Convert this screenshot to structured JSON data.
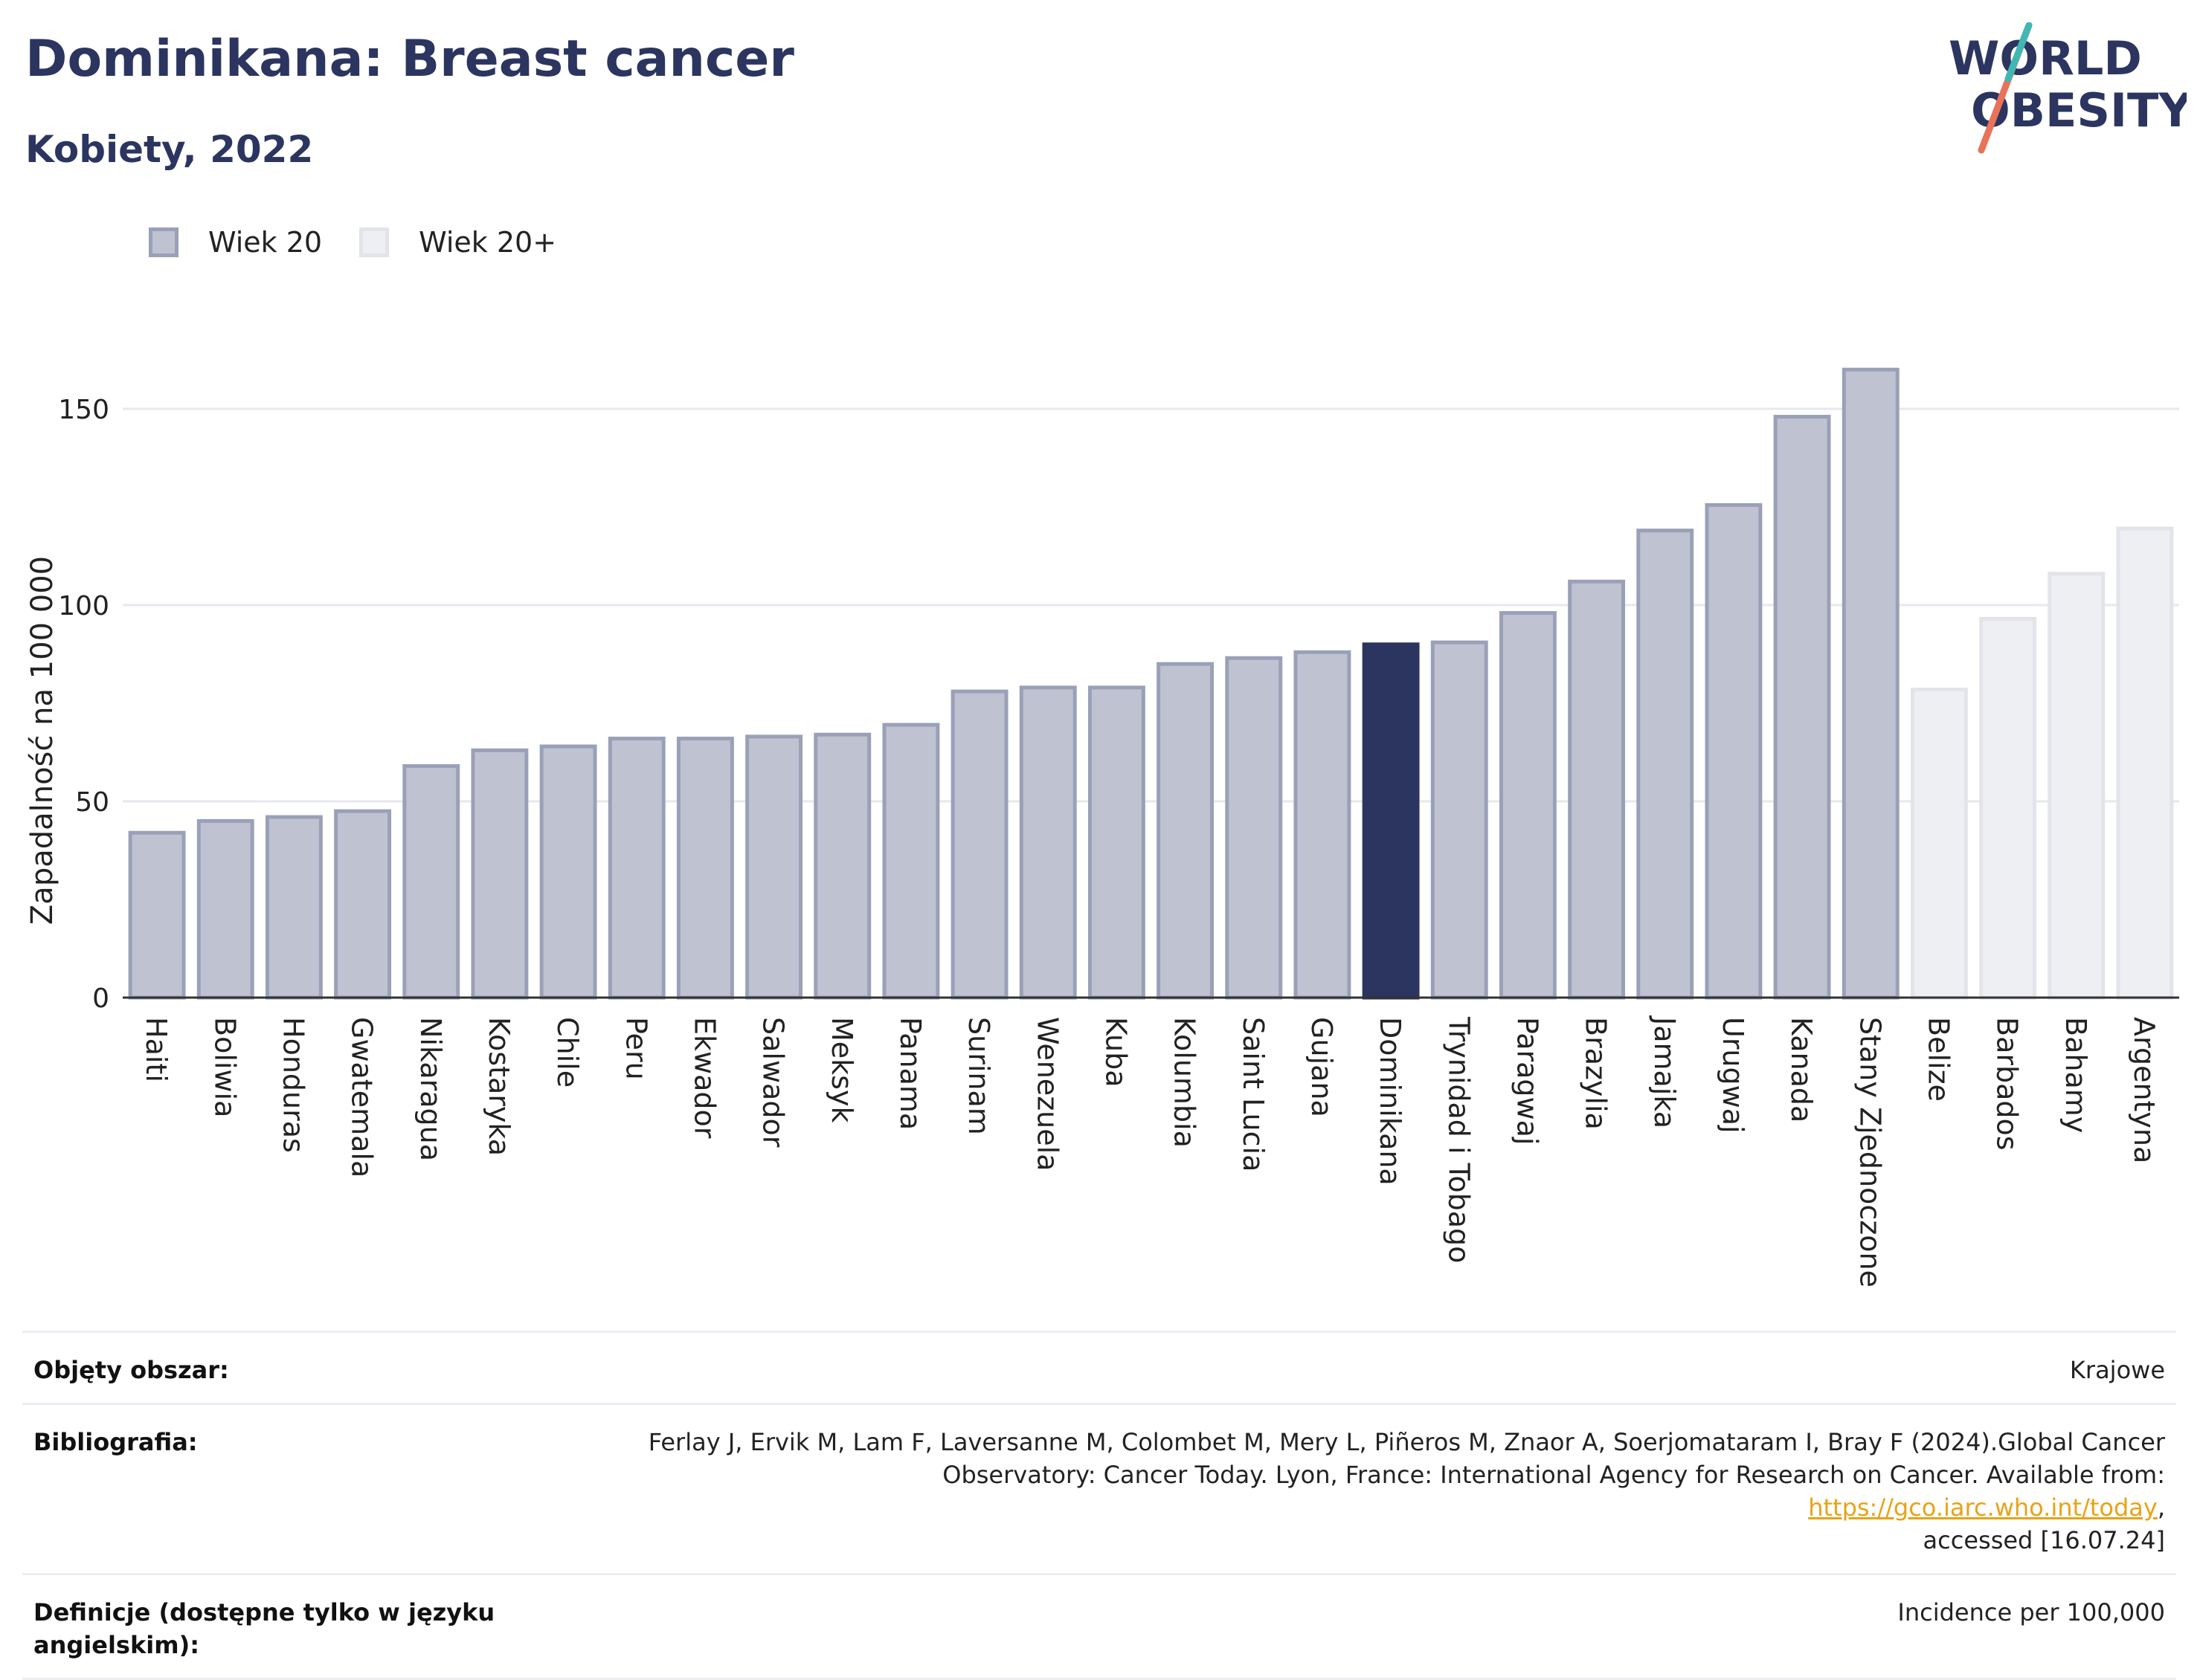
{
  "header": {
    "title": "Dominikana: Breast cancer",
    "subtitle": "Kobiety, 2022",
    "logo_line1": "WORLD",
    "logo_line2": "OBESITY"
  },
  "legend": {
    "items": [
      {
        "label": "Wiek 20",
        "color": "#9aa0b7"
      },
      {
        "label": "Wiek 20+",
        "color": "#e2e4ea"
      }
    ]
  },
  "colors": {
    "highlight": "#2b3560",
    "series_age20": "#bfc3d1",
    "series_age20plus": "#eeeff3",
    "grid": "#e6e8ee"
  },
  "chart_data": {
    "type": "bar",
    "title": "Dominikana: Breast cancer",
    "subtitle": "Kobiety, 2022",
    "ylabel": "Zapadalność na 100 000",
    "xlabel": "",
    "ylim": [
      0,
      170
    ],
    "yticks": [
      0,
      50,
      100,
      150
    ],
    "grid": true,
    "legend_position": "top-left",
    "highlight": "Dominikana",
    "series_names": [
      "Wiek 20",
      "Wiek 20+"
    ],
    "categories": [
      "Haiti",
      "Boliwia",
      "Honduras",
      "Gwatemala",
      "Nikaragua",
      "Kostaryka",
      "Chile",
      "Peru",
      "Ekwador",
      "Salwador",
      "Meksyk",
      "Panama",
      "Surinam",
      "Wenezuela",
      "Kuba",
      "Kolumbia",
      "Saint Lucia",
      "Gujana",
      "Dominikana",
      "Trynidad i Tobago",
      "Paragwaj",
      "Brazylia",
      "Jamajka",
      "Urugwaj",
      "Kanada",
      "Stany Zjednoczone",
      "Belize",
      "Barbados",
      "Bahamy",
      "Argentyna"
    ],
    "values": [
      42,
      45,
      46,
      47.5,
      59,
      63,
      64,
      66,
      66,
      66.5,
      67,
      69.5,
      78,
      79,
      79,
      85,
      86.5,
      88,
      90,
      90.5,
      98,
      106,
      119,
      125.5,
      148,
      160,
      78.5,
      96.5,
      108,
      119.5
    ],
    "series_index": [
      0,
      0,
      0,
      0,
      0,
      0,
      0,
      0,
      0,
      0,
      0,
      0,
      0,
      0,
      0,
      0,
      0,
      0,
      0,
      0,
      0,
      0,
      0,
      0,
      0,
      0,
      1,
      1,
      1,
      1
    ]
  },
  "footer": {
    "rows": [
      {
        "label": "Objęty obszar:",
        "value": "Krajowe"
      },
      {
        "label": "Bibliografia:",
        "value_line1": "Ferlay J, Ervik M, Lam F, Laversanne M, Colombet M, Mery L, Piñeros M, Znaor A, Soerjomataram I, Bray F (2024).Global Cancer",
        "value_line2_pre": "Observatory: Cancer Today. Lyon, France: International Agency for Research on Cancer. Available from: ",
        "link": "https://gco.iarc.who.int/today",
        "value_line2_post": ",",
        "value_line3": "accessed [16.07.24]"
      },
      {
        "label": "Definicje (dostępne tylko w języku angielskim):",
        "value": "Incidence per 100,000"
      }
    ]
  }
}
